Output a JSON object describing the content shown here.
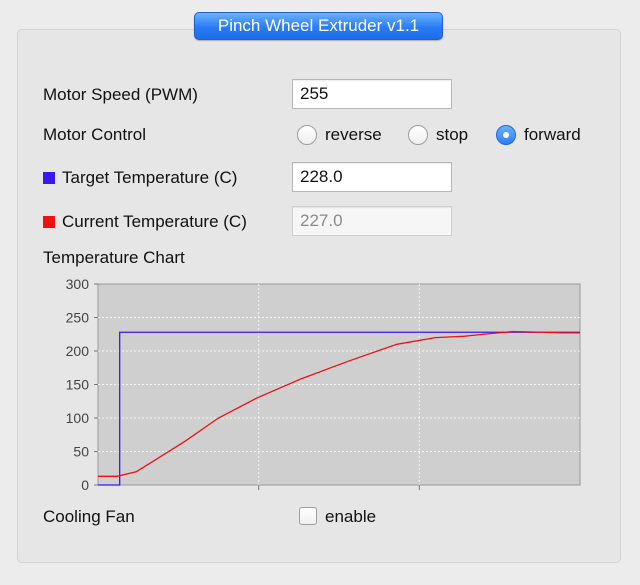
{
  "window": {
    "title": "Pinch Wheel Extruder v1.1"
  },
  "motor_speed": {
    "label": "Motor Speed (PWM)",
    "value": "255"
  },
  "motor_control": {
    "label": "Motor Control",
    "options": [
      {
        "label": "reverse",
        "selected": false
      },
      {
        "label": "stop",
        "selected": false
      },
      {
        "label": "forward",
        "selected": true
      }
    ]
  },
  "target_temperature": {
    "label": "Target Temperature (C)",
    "value": "228.0",
    "color": "#3a17f0"
  },
  "current_temperature": {
    "label": "Current Temperature (C)",
    "value": "227.0",
    "color": "#ee1111"
  },
  "chart": {
    "label": "Temperature Chart",
    "background": "#cfcfcf",
    "grid": true,
    "chart_data": {
      "type": "line",
      "ylim": [
        0,
        300
      ],
      "xlim": [
        0,
        100
      ],
      "y_ticks": [
        "0",
        "50",
        "100",
        "150",
        "200",
        "250",
        "300"
      ],
      "series": [
        {
          "color": "#3a17f0",
          "x": [
            0,
            4.5,
            4.5,
            100
          ],
          "y": [
            0,
            0,
            228,
            228
          ]
        },
        {
          "color": "#ee1111",
          "x": [
            0,
            4,
            8,
            12,
            18,
            25,
            33,
            42,
            52,
            62,
            70,
            76,
            80,
            86,
            92,
            96,
            100
          ],
          "y": [
            13,
            13,
            20,
            38,
            65,
            100,
            130,
            158,
            185,
            210,
            220,
            222,
            225,
            229,
            228,
            227,
            227
          ]
        }
      ]
    }
  },
  "cooling_fan": {
    "label": "Cooling Fan",
    "checkbox_label": "enable",
    "checked": false
  }
}
